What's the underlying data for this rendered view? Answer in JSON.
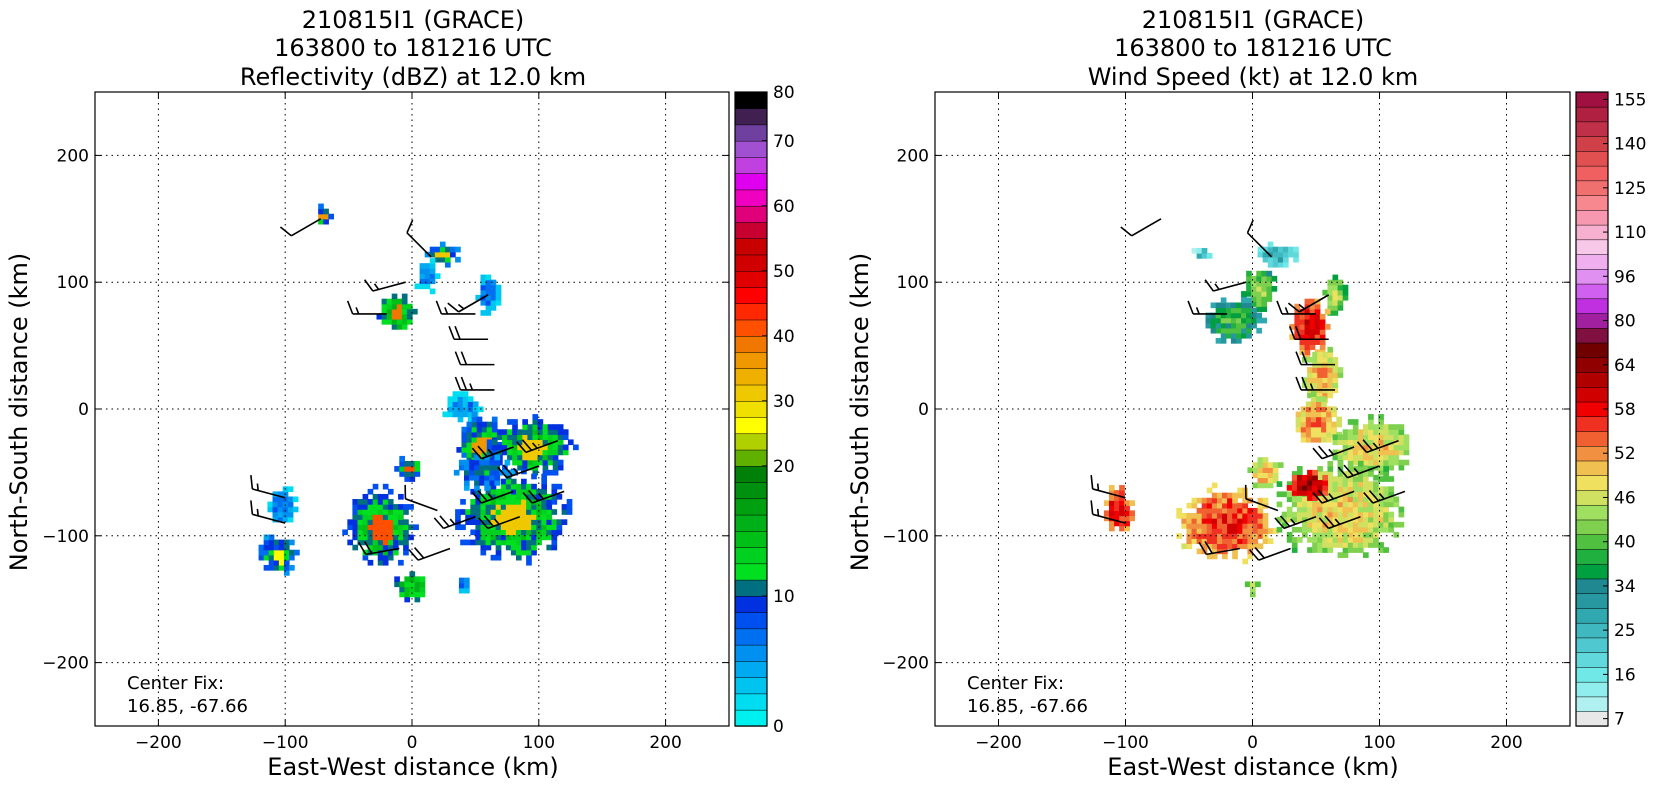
{
  "panels": [
    {
      "id": "reflectivity",
      "title_lines": [
        "210815I1 (GRACE)",
        "163800 to 181216 UTC",
        "Reflectivity (dBZ) at 12.0 km"
      ],
      "xlabel": "East-West distance (km)",
      "ylabel": "North-South distance (km)",
      "center_fix_label": "Center Fix:",
      "center_fix_value": "16.85, -67.66",
      "colorbar": {
        "colors": [
          "#00f0f0",
          "#00dcf0",
          "#00c4f0",
          "#00aaf0",
          "#0090f0",
          "#0070f0",
          "#0050f0",
          "#0030e0",
          "#007080",
          "#00e020",
          "#00d020",
          "#00c018",
          "#00b018",
          "#00a010",
          "#009010",
          "#008008",
          "#60b000",
          "#b0d000",
          "#ffff00",
          "#f0e000",
          "#f0c800",
          "#f0b000",
          "#f09800",
          "#f07800",
          "#ff5000",
          "#ff2800",
          "#ff0000",
          "#e00000",
          "#d00000",
          "#c80000",
          "#c80030",
          "#e0007a",
          "#f000c0",
          "#e000f0",
          "#c040e0",
          "#a050d0",
          "#7040a0",
          "#402050",
          "#000000"
        ],
        "labels": [
          "0",
          "10",
          "20",
          "30",
          "40",
          "50",
          "60",
          "70",
          "80"
        ],
        "label_indices": [
          0,
          8,
          16,
          20,
          24,
          28,
          32,
          36,
          39
        ]
      },
      "chart_data": {
        "type": "heatmap",
        "title": "210815I1 (GRACE) 163800 to 181216 UTC Reflectivity (dBZ) at 12.0 km",
        "xlabel": "East-West distance (km)",
        "ylabel": "North-South distance (km)",
        "xlim": [
          -250,
          250
        ],
        "ylim": [
          -250,
          250
        ],
        "xticks": [
          -200,
          -100,
          0,
          100,
          200
        ],
        "yticks": [
          -200,
          -100,
          0,
          100,
          200
        ],
        "grid": true,
        "colorbar_label_values": [
          0,
          10,
          20,
          30,
          40,
          50,
          60,
          70,
          80
        ],
        "echo_regions": [
          {
            "x": -70,
            "y": 152,
            "rx": 6,
            "ry": 8,
            "v": 10,
            "core": 22
          },
          {
            "x": 24,
            "y": 122,
            "rx": 12,
            "ry": 8,
            "v": 9,
            "core": 20
          },
          {
            "x": 12,
            "y": 105,
            "rx": 8,
            "ry": 12,
            "v": 5
          },
          {
            "x": -12,
            "y": 75,
            "rx": 14,
            "ry": 14,
            "v": 12,
            "core": 23
          },
          {
            "x": 60,
            "y": 90,
            "rx": 8,
            "ry": 14,
            "v": 6
          },
          {
            "x": 40,
            "y": 2,
            "rx": 14,
            "ry": 10,
            "v": 5
          },
          {
            "x": 55,
            "y": -28,
            "rx": 18,
            "ry": 20,
            "v": 10,
            "core": 22
          },
          {
            "x": 95,
            "y": -30,
            "rx": 30,
            "ry": 20,
            "v": 11,
            "core": 20
          },
          {
            "x": -2,
            "y": -47,
            "rx": 10,
            "ry": 8,
            "v": 10,
            "core": 24
          },
          {
            "x": -25,
            "y": -93,
            "rx": 24,
            "ry": 28,
            "v": 11,
            "core": 24
          },
          {
            "x": 80,
            "y": -85,
            "rx": 40,
            "ry": 32,
            "v": 11,
            "core": 20
          },
          {
            "x": 55,
            "y": -50,
            "rx": 20,
            "ry": 12,
            "v": 8
          },
          {
            "x": -102,
            "y": -77,
            "rx": 10,
            "ry": 14,
            "v": 6
          },
          {
            "x": -105,
            "y": -115,
            "rx": 14,
            "ry": 14,
            "v": 9,
            "core": 18
          },
          {
            "x": 0,
            "y": -140,
            "rx": 12,
            "ry": 10,
            "v": 12
          },
          {
            "x": 40,
            "y": -138,
            "rx": 5,
            "ry": 5,
            "v": 7
          }
        ],
        "wind_barbs": [
          {
            "x": -72,
            "y": 150,
            "dir": 240,
            "spd": 10
          },
          {
            "x": 15,
            "y": 120,
            "dir": 315,
            "spd": 10
          },
          {
            "x": 60,
            "y": 90,
            "dir": 240,
            "spd": 15
          },
          {
            "x": -5,
            "y": 100,
            "dir": 255,
            "spd": 15
          },
          {
            "x": -20,
            "y": 75,
            "dir": 270,
            "spd": 15
          },
          {
            "x": 50,
            "y": 75,
            "dir": 270,
            "spd": 15
          },
          {
            "x": 60,
            "y": 55,
            "dir": 270,
            "spd": 20
          },
          {
            "x": 65,
            "y": 35,
            "dir": 270,
            "spd": 20
          },
          {
            "x": 65,
            "y": 15,
            "dir": 270,
            "spd": 25
          },
          {
            "x": 80,
            "y": -30,
            "dir": 250,
            "spd": 25
          },
          {
            "x": 115,
            "y": -25,
            "dir": 250,
            "spd": 25
          },
          {
            "x": 100,
            "y": -45,
            "dir": 250,
            "spd": 25
          },
          {
            "x": 80,
            "y": -65,
            "dir": 250,
            "spd": 25
          },
          {
            "x": 120,
            "y": -65,
            "dir": 250,
            "spd": 25
          },
          {
            "x": 20,
            "y": -80,
            "dir": 290,
            "spd": 10
          },
          {
            "x": 50,
            "y": -85,
            "dir": 250,
            "spd": 25
          },
          {
            "x": 85,
            "y": -85,
            "dir": 250,
            "spd": 25
          },
          {
            "x": 30,
            "y": -110,
            "dir": 250,
            "spd": 20
          },
          {
            "x": -100,
            "y": -70,
            "dir": 285,
            "spd": 15
          },
          {
            "x": -100,
            "y": -90,
            "dir": 285,
            "spd": 15
          },
          {
            "x": -10,
            "y": -110,
            "dir": 260,
            "spd": 20
          }
        ]
      }
    },
    {
      "id": "wind",
      "title_lines": [
        "210815I1 (GRACE)",
        "163800 to 181216 UTC",
        "Wind Speed (kt) at 12.0 km"
      ],
      "xlabel": "East-West distance (km)",
      "ylabel": "North-South distance (km)",
      "center_fix_label": "Center Fix:",
      "center_fix_value": "16.85, -67.66",
      "colorbar": {
        "colors": [
          "#e8e8e8",
          "#b0f0f0",
          "#90eeee",
          "#70e8e8",
          "#60d8dc",
          "#50c8d0",
          "#40b8c0",
          "#30a8b0",
          "#2898a0",
          "#208890",
          "#00a040",
          "#20b040",
          "#50c040",
          "#80d050",
          "#a0e060",
          "#d0e060",
          "#f0e060",
          "#f0c050",
          "#f09040",
          "#f06030",
          "#f03020",
          "#f00000",
          "#d00000",
          "#b00000",
          "#900000",
          "#700000",
          "#801040",
          "#a020a0",
          "#c030e0",
          "#d060f0",
          "#e090f0",
          "#f0b0f0",
          "#f8c8e8",
          "#f8b0d0",
          "#f898b0",
          "#f88890",
          "#f07070",
          "#f06060",
          "#e05050",
          "#d04048",
          "#c03048",
          "#b02040",
          "#a01040"
        ],
        "labels": [
          "7",
          "16",
          "25",
          "34",
          "40",
          "46",
          "52",
          "58",
          "64",
          "80",
          "96",
          "110",
          "125",
          "140",
          "155"
        ],
        "label_indices": [
          0,
          3,
          6,
          9,
          12,
          15,
          18,
          21,
          24,
          27,
          30,
          33,
          36,
          39,
          42
        ]
      },
      "chart_data": {
        "type": "heatmap",
        "title": "210815I1 (GRACE) 163800 to 181216 UTC Wind Speed (kt) at 12.0 km",
        "xlabel": "East-West distance (km)",
        "ylabel": "North-South distance (km)",
        "xlim": [
          -250,
          250
        ],
        "ylim": [
          -250,
          250
        ],
        "xticks": [
          -200,
          -100,
          0,
          100,
          200
        ],
        "yticks": [
          -200,
          -100,
          0,
          100,
          200
        ],
        "grid": true,
        "colorbar_label_values": [
          7,
          16,
          25,
          34,
          40,
          46,
          52,
          58,
          64,
          80,
          96,
          110,
          125,
          140,
          155
        ],
        "wind_regions": [
          {
            "x": -40,
            "y": 122,
            "rx": 6,
            "ry": 5,
            "v": 6
          },
          {
            "x": 20,
            "y": 122,
            "rx": 14,
            "ry": 8,
            "v": 8
          },
          {
            "x": 5,
            "y": 95,
            "rx": 12,
            "ry": 16,
            "v": 14
          },
          {
            "x": -15,
            "y": 70,
            "rx": 20,
            "ry": 16,
            "v": 12
          },
          {
            "x": 65,
            "y": 90,
            "rx": 8,
            "ry": 14,
            "v": 15
          },
          {
            "x": 45,
            "y": 65,
            "rx": 14,
            "ry": 20,
            "v": 22
          },
          {
            "x": 55,
            "y": 25,
            "rx": 14,
            "ry": 22,
            "v": 18
          },
          {
            "x": 50,
            "y": -10,
            "rx": 18,
            "ry": 18,
            "v": 19
          },
          {
            "x": 95,
            "y": -30,
            "rx": 30,
            "ry": 20,
            "v": 17
          },
          {
            "x": 10,
            "y": -50,
            "rx": 12,
            "ry": 10,
            "v": 18
          },
          {
            "x": -20,
            "y": -90,
            "rx": 34,
            "ry": 26,
            "v": 21
          },
          {
            "x": 70,
            "y": -80,
            "rx": 45,
            "ry": 35,
            "v": 17
          },
          {
            "x": 45,
            "y": -60,
            "rx": 16,
            "ry": 10,
            "v": 24
          },
          {
            "x": -105,
            "y": -80,
            "rx": 10,
            "ry": 18,
            "v": 22
          },
          {
            "x": 0,
            "y": -140,
            "rx": 4,
            "ry": 6,
            "v": 16
          }
        ],
        "wind_barbs": [
          {
            "x": -72,
            "y": 150,
            "dir": 240,
            "spd": 10
          },
          {
            "x": 15,
            "y": 120,
            "dir": 315,
            "spd": 10
          },
          {
            "x": 60,
            "y": 90,
            "dir": 240,
            "spd": 15
          },
          {
            "x": -5,
            "y": 100,
            "dir": 255,
            "spd": 15
          },
          {
            "x": -20,
            "y": 75,
            "dir": 270,
            "spd": 15
          },
          {
            "x": 50,
            "y": 75,
            "dir": 270,
            "spd": 15
          },
          {
            "x": 60,
            "y": 55,
            "dir": 270,
            "spd": 20
          },
          {
            "x": 65,
            "y": 35,
            "dir": 270,
            "spd": 20
          },
          {
            "x": 65,
            "y": 15,
            "dir": 270,
            "spd": 25
          },
          {
            "x": 80,
            "y": -30,
            "dir": 250,
            "spd": 25
          },
          {
            "x": 115,
            "y": -25,
            "dir": 250,
            "spd": 25
          },
          {
            "x": 100,
            "y": -45,
            "dir": 250,
            "spd": 25
          },
          {
            "x": 80,
            "y": -65,
            "dir": 250,
            "spd": 25
          },
          {
            "x": 120,
            "y": -65,
            "dir": 250,
            "spd": 25
          },
          {
            "x": 20,
            "y": -80,
            "dir": 290,
            "spd": 10
          },
          {
            "x": 50,
            "y": -85,
            "dir": 250,
            "spd": 25
          },
          {
            "x": 85,
            "y": -85,
            "dir": 250,
            "spd": 25
          },
          {
            "x": 30,
            "y": -110,
            "dir": 250,
            "spd": 20
          },
          {
            "x": -100,
            "y": -70,
            "dir": 285,
            "spd": 15
          },
          {
            "x": -100,
            "y": -90,
            "dir": 285,
            "spd": 15
          },
          {
            "x": -10,
            "y": -110,
            "dir": 260,
            "spd": 20
          }
        ]
      }
    }
  ]
}
